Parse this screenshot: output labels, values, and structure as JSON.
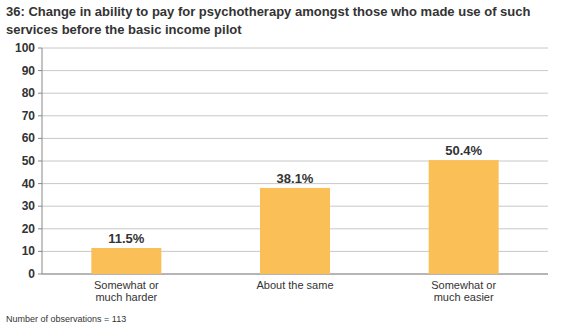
{
  "chart_data": {
    "type": "bar",
    "title": "36: Change in ability to pay for psychotherapy amongst those who made use of such services before the basic income pilot",
    "categories": [
      "Somewhat or much harder",
      "About the same",
      "Somewhat or much easier"
    ],
    "values": [
      11.5,
      38.1,
      50.4
    ],
    "value_labels": [
      "11.5%",
      "38.1%",
      "50.4%"
    ],
    "color": "#fbbf58",
    "ylim": [
      0,
      100
    ],
    "yticks": [
      0,
      10,
      20,
      30,
      40,
      50,
      60,
      70,
      80,
      90,
      100
    ],
    "grid": true,
    "data_labels": true,
    "note": "Number of observations = 113"
  }
}
